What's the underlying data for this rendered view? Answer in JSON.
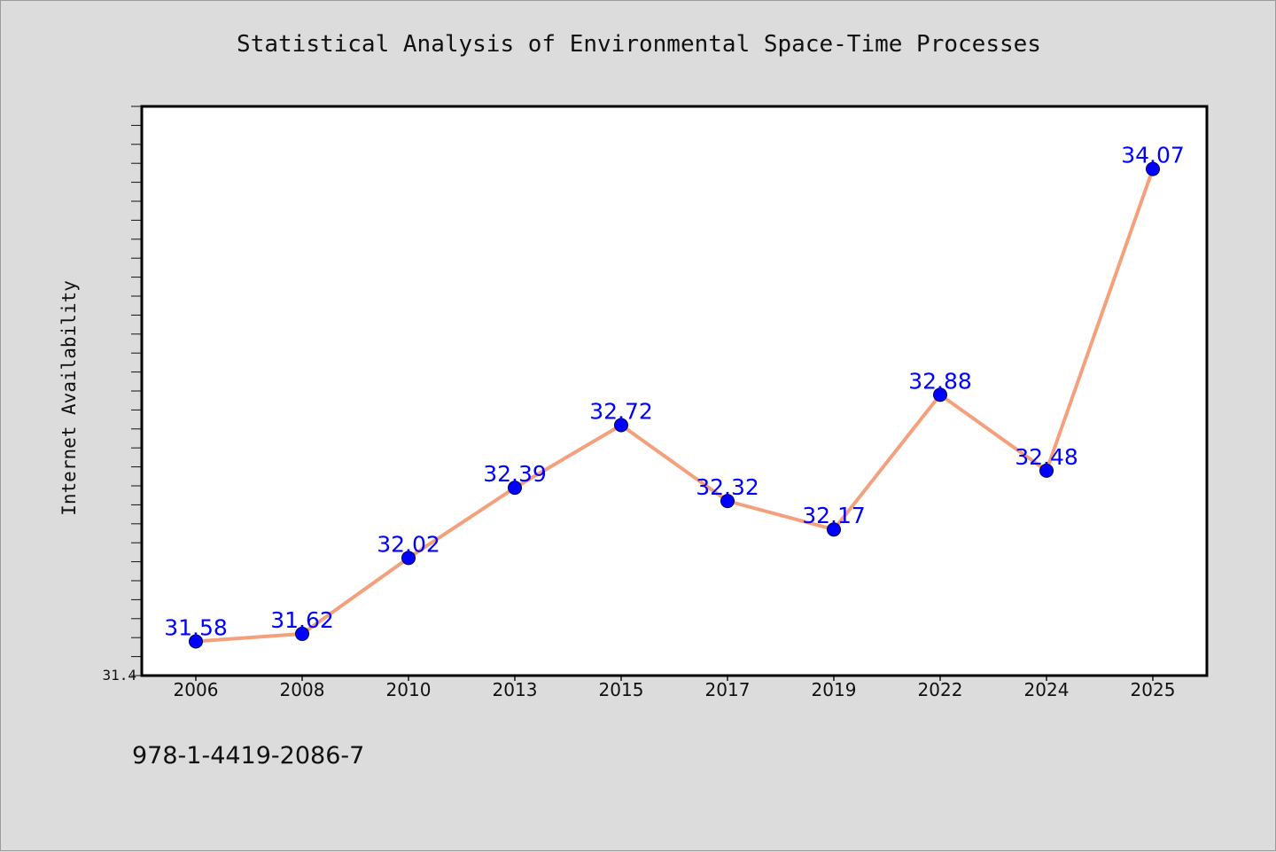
{
  "chart_data": {
    "type": "line",
    "title": "Statistical Analysis of Environmental Space-Time Processes",
    "xlabel": "",
    "ylabel": "Internet Availability",
    "categories": [
      "2006",
      "2008",
      "2010",
      "2013",
      "2015",
      "2017",
      "2019",
      "2022",
      "2024",
      "2025"
    ],
    "series": [
      {
        "values": [
          31.58,
          31.62,
          32.02,
          32.39,
          32.72,
          32.32,
          32.17,
          32.88,
          32.48,
          34.07
        ]
      }
    ],
    "data_labels": [
      "31.58",
      "31.62",
      "32.02",
      "32.39",
      "32.72",
      "32.32",
      "32.17",
      "32.88",
      "32.48",
      "34.07"
    ],
    "ylim": [
      31.4,
      34.4
    ],
    "y_tick_labels": [
      {
        "value": 31.4,
        "label": "31.4"
      }
    ],
    "y_minor_step": 0.1,
    "grid": false,
    "line_color": "#f4a07c",
    "marker_color": "#0000ff",
    "label_color": "#0000ff",
    "plot_background": "#ffffff",
    "figure_background": "#dcdcdc"
  },
  "footer": {
    "isbn": "978-1-4419-2086-7"
  }
}
